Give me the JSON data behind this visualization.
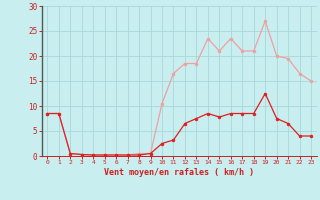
{
  "x": [
    0,
    1,
    2,
    3,
    4,
    5,
    6,
    7,
    8,
    9,
    10,
    11,
    12,
    13,
    14,
    15,
    16,
    17,
    18,
    19,
    20,
    21,
    22,
    23
  ],
  "wind_avg": [
    8.5,
    8.5,
    0.5,
    0.3,
    0.2,
    0.2,
    0.2,
    0.2,
    0.2,
    0.5,
    2.5,
    3.2,
    6.5,
    7.5,
    8.5,
    7.8,
    8.5,
    8.5,
    8.5,
    12.5,
    7.5,
    6.5,
    4.0,
    4.0
  ],
  "wind_gust": [
    8.5,
    8.5,
    0.5,
    0.3,
    0.2,
    0.2,
    0.2,
    0.2,
    0.5,
    0.5,
    10.5,
    16.5,
    18.5,
    18.5,
    23.5,
    21.0,
    23.5,
    21.0,
    21.0,
    27.0,
    20.0,
    19.5,
    16.5,
    15.0
  ],
  "color_avg": "#dd2020",
  "color_gust": "#f0a0a0",
  "bg_color": "#c8eef0",
  "grid_color": "#a8d8da",
  "axis_color": "#cc2020",
  "xlabel": "Vent moyen/en rafales ( km/h )",
  "ylim": [
    0,
    30
  ],
  "yticks": [
    0,
    5,
    10,
    15,
    20,
    25,
    30
  ],
  "xticks": [
    0,
    1,
    2,
    3,
    4,
    5,
    6,
    7,
    8,
    9,
    10,
    11,
    12,
    13,
    14,
    15,
    16,
    17,
    18,
    19,
    20,
    21,
    22,
    23
  ]
}
